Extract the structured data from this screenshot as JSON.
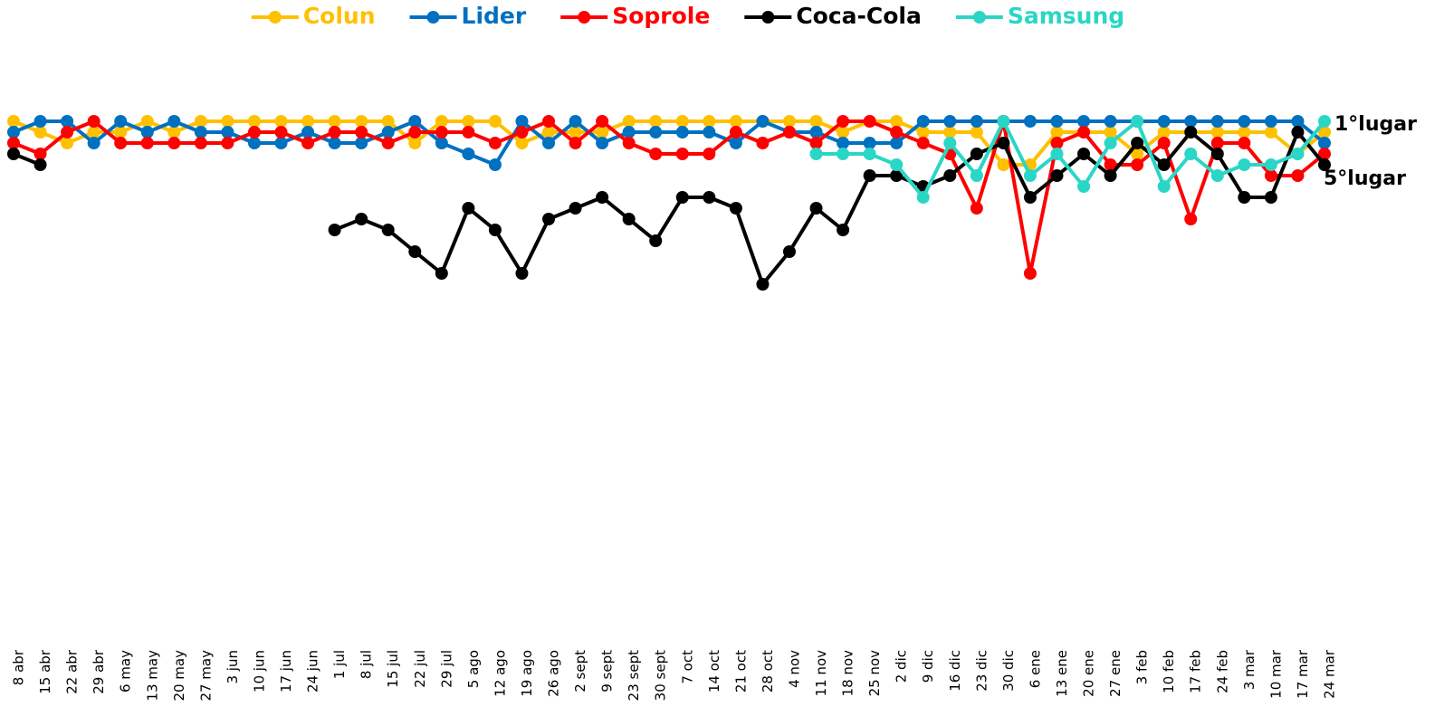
{
  "chart_data": {
    "type": "line",
    "categories": [
      "8 abr",
      "15 abr",
      "22 abr",
      "29 abr",
      "6 may",
      "13 may",
      "20 may",
      "27 may",
      "3 jun",
      "10 jun",
      "17 jun",
      "24 jun",
      "1 jul",
      "8 jul",
      "15 jul",
      "22 jul",
      "29 jul",
      "5 ago",
      "12 ago",
      "19 ago",
      "26 ago",
      "2 sept",
      "9 sept",
      "23 sept",
      "30 sept",
      "7 oct",
      "14 oct",
      "21 oct",
      "28 oct",
      "4 nov",
      "11 nov",
      "18 nov",
      "25 nov",
      "2 dic",
      "9 dic",
      "16 dic",
      "23 dic",
      "30 dic",
      "6 ene",
      "13 ene",
      "20 ene",
      "27 ene",
      "3 feb",
      "10 feb",
      "17 feb",
      "24 feb",
      "3 mar",
      "10 mar",
      "17 mar",
      "24 mar"
    ],
    "series": [
      {
        "name": "Colun",
        "color": "#ffc000",
        "values": [
          1,
          2,
          3,
          2,
          2,
          1,
          2,
          1,
          1,
          1,
          1,
          1,
          1,
          1,
          1,
          3,
          1,
          1,
          1,
          3,
          2,
          2,
          2,
          1,
          1,
          1,
          1,
          1,
          1,
          1,
          1,
          2,
          1,
          1,
          2,
          2,
          2,
          5,
          5,
          2,
          2,
          2,
          4,
          2,
          2,
          2,
          2,
          2,
          4,
          2
        ]
      },
      {
        "name": "Lider",
        "color": "#0070c0",
        "values": [
          2,
          1,
          1,
          3,
          1,
          2,
          1,
          2,
          2,
          3,
          3,
          2,
          3,
          3,
          2,
          1,
          3,
          4,
          5,
          1,
          3,
          1,
          3,
          2,
          2,
          2,
          2,
          3,
          1,
          2,
          2,
          3,
          3,
          3,
          1,
          1,
          1,
          1,
          1,
          1,
          1,
          1,
          1,
          1,
          1,
          1,
          1,
          1,
          1,
          3
        ]
      },
      {
        "name": "Soprole",
        "color": "#ff0000",
        "values": [
          3,
          4,
          2,
          1,
          3,
          3,
          3,
          3,
          3,
          2,
          2,
          3,
          2,
          2,
          3,
          2,
          2,
          2,
          3,
          2,
          1,
          3,
          1,
          3,
          4,
          4,
          4,
          2,
          3,
          2,
          3,
          1,
          1,
          2,
          3,
          4,
          9,
          1,
          15,
          3,
          2,
          5,
          5,
          3,
          10,
          3,
          3,
          6,
          6,
          4
        ]
      },
      {
        "name": "Coca-Cola",
        "color": "#000000",
        "values": [
          4,
          5,
          null,
          null,
          null,
          null,
          null,
          null,
          null,
          null,
          null,
          null,
          11,
          10,
          11,
          13,
          15,
          9,
          11,
          15,
          10,
          9,
          8,
          10,
          12,
          8,
          8,
          9,
          16,
          13,
          9,
          11,
          6,
          6,
          7,
          6,
          4,
          3,
          8,
          6,
          4,
          6,
          3,
          5,
          2,
          4,
          8,
          8,
          2,
          5
        ]
      },
      {
        "name": "Samsung",
        "color": "#2ad6c6",
        "values": [
          null,
          null,
          null,
          null,
          null,
          null,
          null,
          null,
          null,
          null,
          null,
          null,
          null,
          null,
          null,
          null,
          null,
          null,
          null,
          null,
          null,
          null,
          null,
          null,
          null,
          null,
          null,
          null,
          null,
          null,
          4,
          4,
          4,
          5,
          8,
          3,
          6,
          1,
          6,
          4,
          7,
          3,
          1,
          7,
          4,
          6,
          5,
          5,
          4,
          1
        ]
      }
    ],
    "ylim": [
      1,
      16
    ],
    "y_inverted": true,
    "annotations": [
      "1°lugar",
      "5°lugar"
    ]
  }
}
